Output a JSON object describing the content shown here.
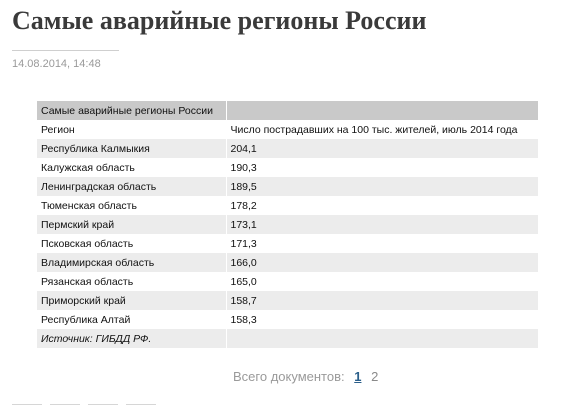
{
  "article": {
    "title": "Самые аварийные регионы России",
    "date": "14.08.2014, 14:48"
  },
  "table": {
    "caption": "Самые аварийные регионы России",
    "headers": [
      "Регион",
      "Число пострадавших на 100 тыс. жителей, июль 2014 года"
    ],
    "rows": [
      [
        "Республика Калмыкия",
        "204,1"
      ],
      [
        "Калужская область",
        "190,3"
      ],
      [
        "Ленинградская область",
        "189,5"
      ],
      [
        "Тюменская область",
        "178,2"
      ],
      [
        "Пермский край",
        "173,1"
      ],
      [
        "Псковская область",
        "171,3"
      ],
      [
        "Владимирская область",
        "166,0"
      ],
      [
        "Рязанская область",
        "165,0"
      ],
      [
        "Приморский край",
        "158,7"
      ],
      [
        "Республика Алтай",
        "158,3"
      ]
    ],
    "source": "Источник: ГИБДД РФ."
  },
  "pager": {
    "label": "Всего документов:",
    "current": "1",
    "other": "2"
  }
}
